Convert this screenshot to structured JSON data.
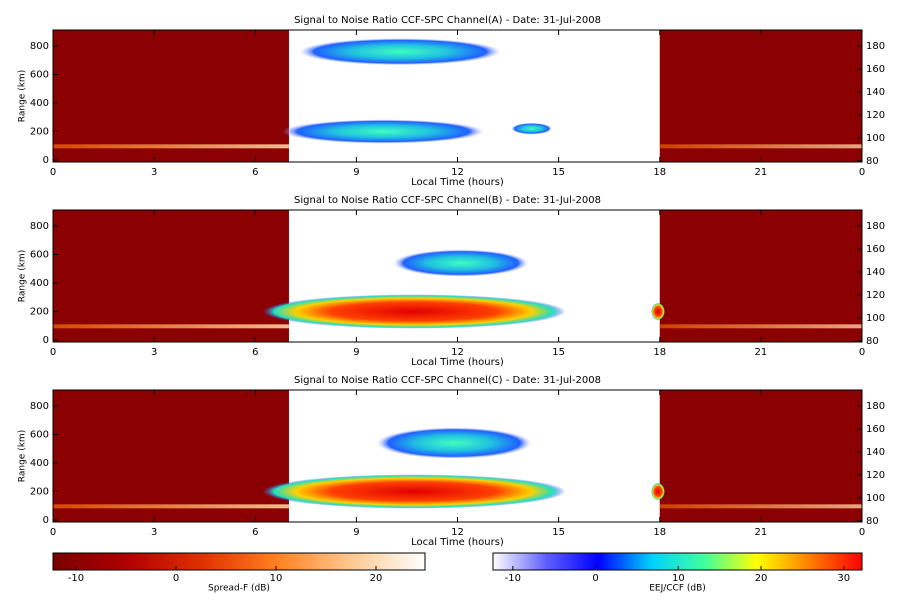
{
  "chart_data": [
    {
      "type": "heatmap",
      "title": "Signal to Noise Ratio CCF-SPC Channel(A) - Date: 31-Jul-2008",
      "xlabel": "Local Time (hours)",
      "ylabel": "Range (km)",
      "xlim": [
        0,
        24
      ],
      "xticks": [
        0,
        3,
        6,
        9,
        12,
        15,
        18,
        21,
        {
          "value": 24,
          "label": "0"
        }
      ],
      "ylim": [
        -14,
        912
      ],
      "yticks": [
        0,
        200,
        400,
        600,
        800
      ],
      "y2lim": [
        79,
        194
      ],
      "y2ticks": [
        80,
        100,
        120,
        140,
        160,
        180
      ]
    },
    {
      "type": "heatmap",
      "title": "Signal to Noise Ratio CCF-SPC Channel(B) - Date: 31-Jul-2008",
      "xlabel": "Local Time (hours)",
      "ylabel": "Range (km)",
      "xlim": [
        0,
        24
      ],
      "xticks": [
        0,
        3,
        6,
        9,
        12,
        15,
        18,
        21,
        {
          "value": 24,
          "label": "0"
        }
      ],
      "ylim": [
        -14,
        912
      ],
      "yticks": [
        0,
        200,
        400,
        600,
        800
      ],
      "y2lim": [
        79,
        194
      ],
      "y2ticks": [
        80,
        100,
        120,
        140,
        160,
        180
      ]
    },
    {
      "type": "heatmap",
      "title": "Signal to Noise Ratio CCF-SPC Channel(C) - Date: 31-Jul-2008",
      "xlabel": "Local Time (hours)",
      "ylabel": "Range (km)",
      "xlim": [
        0,
        24
      ],
      "xticks": [
        0,
        3,
        6,
        9,
        12,
        15,
        18,
        21,
        {
          "value": 24,
          "label": "0"
        }
      ],
      "ylim": [
        -14,
        912
      ],
      "yticks": [
        0,
        200,
        400,
        600,
        800
      ],
      "y2lim": [
        79,
        194
      ],
      "y2ticks": [
        80,
        100,
        120,
        140,
        160,
        180
      ]
    },
    {
      "type": "colorbar",
      "label": "Spread-F (dB)",
      "xlim": [
        -12.3,
        24.9
      ],
      "xticks": [
        -10,
        0,
        10,
        20
      ],
      "colors": [
        "#7a0000",
        "#b00000",
        "#e03000",
        "#ff8020",
        "#ffc890",
        "#ffffff"
      ]
    },
    {
      "type": "colorbar",
      "label": "EEJ/CCF (dB)",
      "xlim": [
        -12.4,
        32.2
      ],
      "xticks": [
        -10,
        0,
        10,
        20,
        30
      ],
      "colors": [
        "#ffffff",
        "#6060ff",
        "#0000ff",
        "#00d0ff",
        "#40ffa0",
        "#ffff00",
        "#ff8000",
        "#ff0000"
      ]
    }
  ]
}
